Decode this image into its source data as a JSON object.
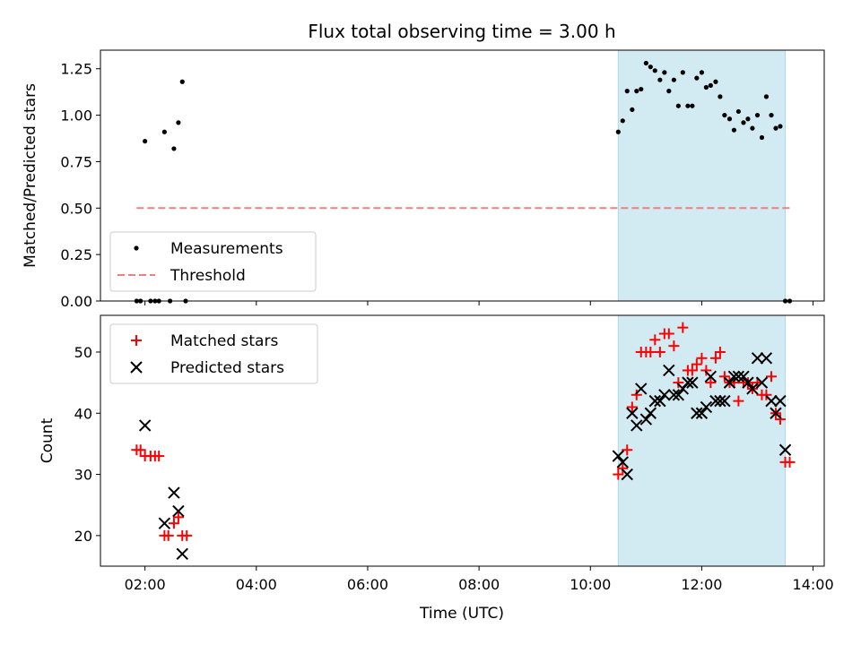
{
  "chart_data": [
    {
      "panel": "top",
      "type": "scatter",
      "title": "Flux total observing time = 3.00 h",
      "xlabel": "",
      "ylabel": "Matched/Predicted stars",
      "xlim": [
        1.2,
        14.2
      ],
      "ylim": [
        0.0,
        1.35
      ],
      "yticks": [
        0.0,
        0.25,
        0.5,
        0.75,
        1.0,
        1.25
      ],
      "ytick_labels": [
        "0.00",
        "0.25",
        "0.50",
        "0.75",
        "1.00",
        "1.25"
      ],
      "xticks": [
        2,
        4,
        6,
        8,
        10,
        12,
        14
      ],
      "shaded_interval": [
        10.5,
        13.5
      ],
      "shade_color": "#add8e6",
      "legend_position": "lower-left",
      "series": [
        {
          "name": "Measurements",
          "marker": "dot",
          "color": "#000000",
          "x": [
            1.85,
            1.92,
            2.0,
            2.1,
            2.18,
            2.25,
            2.35,
            2.45,
            2.52,
            2.6,
            2.67,
            2.73,
            10.5,
            10.58,
            10.66,
            10.75,
            10.83,
            10.91,
            11.0,
            11.08,
            11.16,
            11.25,
            11.33,
            11.41,
            11.5,
            11.58,
            11.66,
            11.75,
            11.83,
            11.91,
            12.0,
            12.08,
            12.16,
            12.25,
            12.33,
            12.41,
            12.5,
            12.58,
            12.66,
            12.75,
            12.83,
            12.91,
            13.0,
            13.08,
            13.16,
            13.25,
            13.33,
            13.41,
            13.5,
            13.58
          ],
          "y": [
            0.0,
            0.0,
            0.86,
            0.0,
            0.0,
            0.0,
            0.91,
            0.0,
            0.82,
            0.96,
            1.18,
            0.0,
            0.91,
            0.97,
            1.13,
            1.03,
            1.13,
            1.14,
            1.28,
            1.26,
            1.24,
            1.19,
            1.23,
            1.13,
            1.19,
            1.05,
            1.23,
            1.05,
            1.05,
            1.2,
            1.23,
            1.15,
            1.16,
            1.18,
            1.1,
            1.0,
            0.98,
            0.92,
            1.02,
            0.96,
            0.98,
            0.93,
            1.0,
            0.88,
            1.1,
            1.0,
            0.93,
            0.94,
            0.0,
            0.0
          ]
        },
        {
          "name": "Threshold",
          "style": "dashed",
          "color": "#f08080",
          "x": [
            1.85,
            13.6
          ],
          "y": [
            0.5,
            0.5
          ]
        }
      ]
    },
    {
      "panel": "bottom",
      "type": "scatter",
      "title": "",
      "xlabel": "Time (UTC)",
      "ylabel": "Count",
      "xlim": [
        1.2,
        14.2
      ],
      "ylim": [
        15,
        56
      ],
      "yticks": [
        20,
        30,
        40,
        50
      ],
      "ytick_labels": [
        "20",
        "30",
        "40",
        "50"
      ],
      "xticks": [
        2,
        4,
        6,
        8,
        10,
        12,
        14
      ],
      "xtick_labels": [
        "02:00",
        "04:00",
        "06:00",
        "08:00",
        "10:00",
        "12:00",
        "14:00"
      ],
      "shaded_interval": [
        10.5,
        13.5
      ],
      "shade_color": "#add8e6",
      "legend_position": "upper-left",
      "series": [
        {
          "name": "Matched stars",
          "marker": "plus",
          "color": "#ff0000",
          "x": [
            1.85,
            1.92,
            2.0,
            2.1,
            2.18,
            2.25,
            2.35,
            2.42,
            2.52,
            2.6,
            2.67,
            2.75,
            10.5,
            10.58,
            10.66,
            10.75,
            10.83,
            10.91,
            11.0,
            11.08,
            11.16,
            11.25,
            11.33,
            11.41,
            11.5,
            11.58,
            11.66,
            11.75,
            11.83,
            11.91,
            12.0,
            12.08,
            12.16,
            12.25,
            12.33,
            12.41,
            12.5,
            12.58,
            12.66,
            12.75,
            12.83,
            12.91,
            13.0,
            13.08,
            13.16,
            13.25,
            13.33,
            13.41,
            13.5,
            13.58
          ],
          "y": [
            34,
            34,
            33,
            33,
            33,
            33,
            20,
            20,
            22,
            23,
            20,
            20,
            30,
            31,
            34,
            41,
            43,
            50,
            50,
            50,
            52,
            50,
            53,
            53,
            51,
            45,
            54,
            47,
            47,
            48,
            49,
            47,
            45,
            49,
            50,
            46,
            45,
            45,
            42,
            45,
            45,
            44,
            45,
            43,
            43,
            46,
            40,
            39,
            32,
            32
          ]
        },
        {
          "name": "Predicted stars",
          "marker": "x",
          "color": "#000000",
          "x": [
            2.0,
            2.35,
            2.52,
            2.6,
            2.67,
            10.5,
            10.58,
            10.66,
            10.75,
            10.83,
            10.91,
            11.0,
            11.08,
            11.16,
            11.25,
            11.33,
            11.41,
            11.5,
            11.58,
            11.66,
            11.75,
            11.83,
            11.91,
            12.0,
            12.08,
            12.16,
            12.25,
            12.33,
            12.41,
            12.5,
            12.58,
            12.66,
            12.75,
            12.83,
            12.91,
            13.0,
            13.08,
            13.16,
            13.25,
            13.33,
            13.41,
            13.5
          ],
          "y": [
            38,
            22,
            27,
            24,
            17,
            33,
            32,
            30,
            40,
            38,
            44,
            39,
            40,
            42,
            42,
            43,
            47,
            43,
            43,
            44,
            45,
            45,
            40,
            40,
            41,
            46,
            42,
            42,
            42,
            45,
            46,
            46,
            46,
            45,
            44,
            49,
            45,
            49,
            42,
            40,
            42,
            34
          ]
        }
      ]
    }
  ]
}
